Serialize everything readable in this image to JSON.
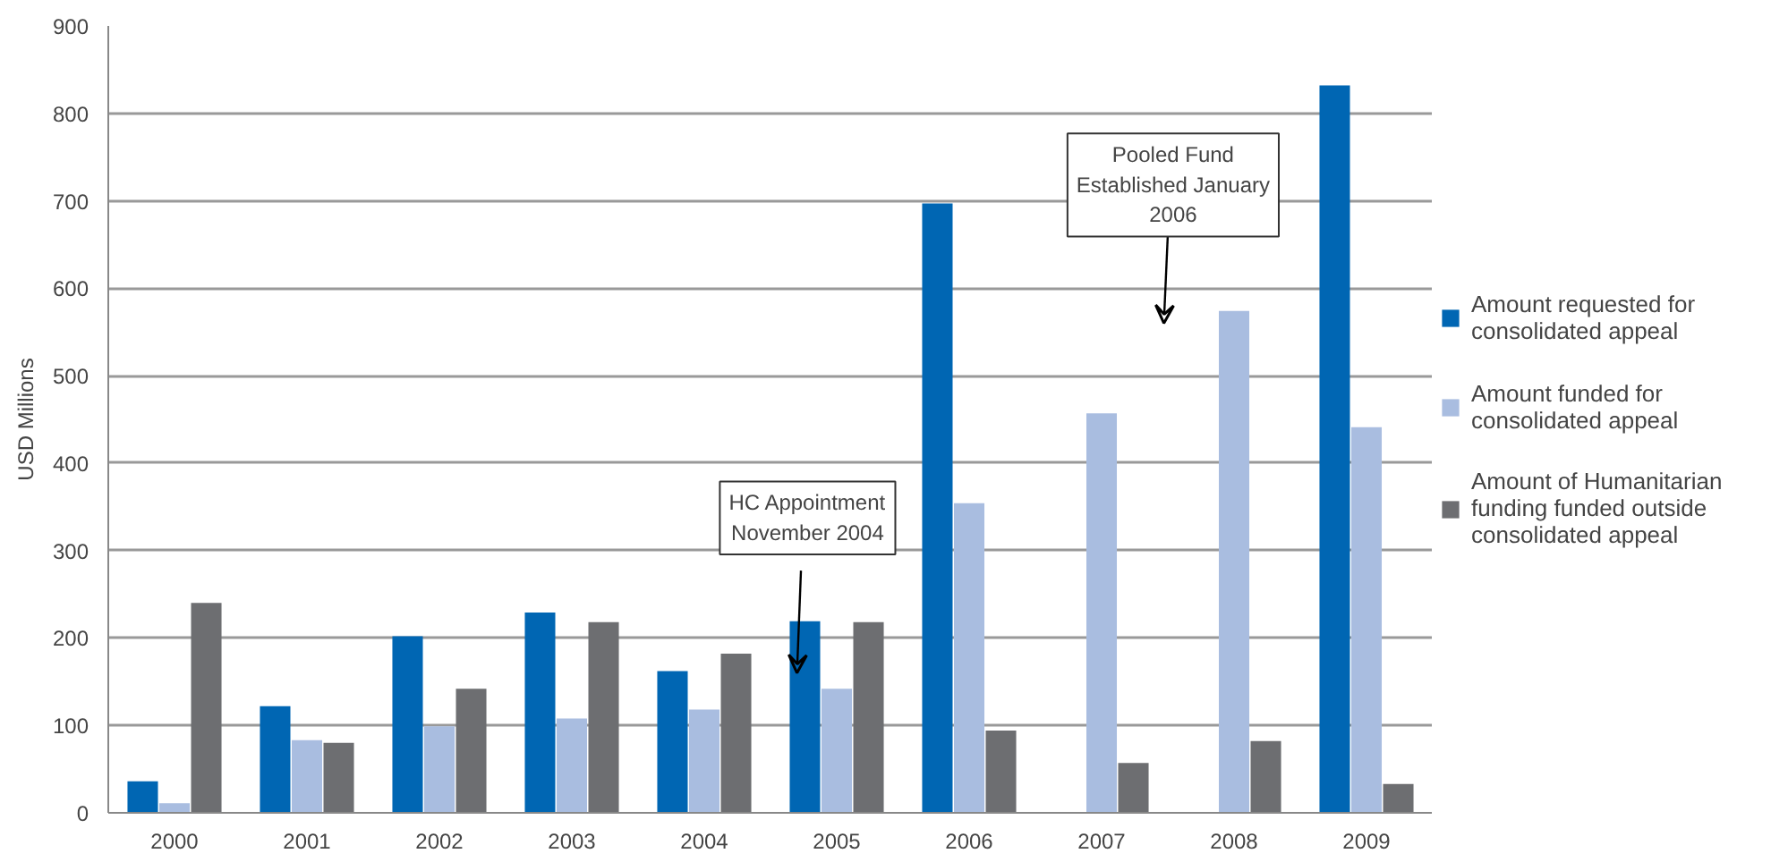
{
  "chart_data": {
    "type": "bar",
    "ylabel": "USD Millions",
    "categories": [
      "2000",
      "2001",
      "2002",
      "2003",
      "2004",
      "2005",
      "2006",
      "2007",
      "2008",
      "2009"
    ],
    "series": [
      {
        "name": "Amount requested for consolidated appeal",
        "color": "#0066b3",
        "values": [
          36,
          122,
          202,
          229,
          162,
          219,
          697,
          null,
          null,
          832
        ]
      },
      {
        "name": "Amount funded for consolidated appeal",
        "color": "#a9bde0",
        "values": [
          11,
          83,
          99,
          108,
          118,
          142,
          354,
          457,
          574,
          441
        ]
      },
      {
        "name": "Amount of Humanitarian funding funded outside consolidated appeal",
        "color": "#6d6e71",
        "values": [
          240,
          80,
          142,
          218,
          182,
          218,
          94,
          57,
          82,
          33
        ]
      }
    ],
    "ylim": [
      0,
      900
    ],
    "yticks": [
      0,
      100,
      200,
      300,
      400,
      500,
      600,
      700,
      800,
      900
    ],
    "grid": "y",
    "legend": "right",
    "annotations": [
      "HC Appointment November 2004",
      "Pooled Fund Established January 2006"
    ]
  }
}
